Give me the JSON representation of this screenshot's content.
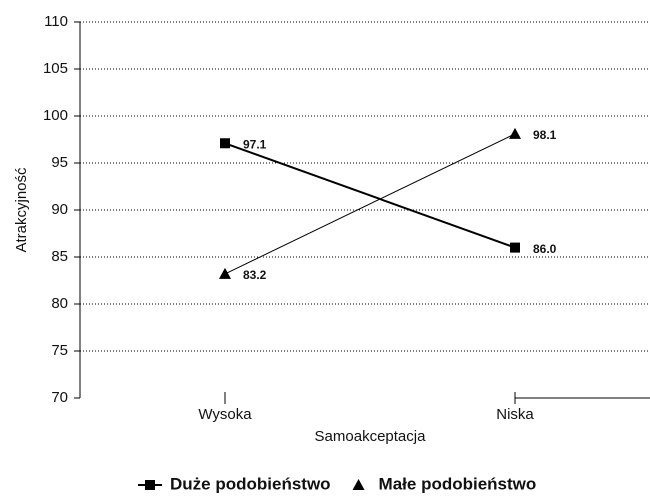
{
  "chart_data": {
    "type": "line",
    "x_label": "Samoakceptacja",
    "y_label": "Atrakcyjność",
    "categories": [
      "Wysoka",
      "Niska"
    ],
    "series": [
      {
        "name": "Duże podobieństwo",
        "color": "#000000",
        "marker": "square",
        "values": [
          97.1,
          86.0
        ],
        "value_labels": [
          "97.1",
          "86.0"
        ]
      },
      {
        "name": "Małe podobieństwo",
        "color": "#000000",
        "marker": "triangle",
        "values": [
          83.2,
          98.1
        ],
        "value_labels": [
          "83.2",
          "98.1"
        ]
      }
    ],
    "ylim": [
      70,
      110
    ],
    "yticks": [
      70,
      75,
      80,
      85,
      90,
      95,
      100,
      105,
      110
    ],
    "grid": true,
    "legend": "bottom"
  }
}
